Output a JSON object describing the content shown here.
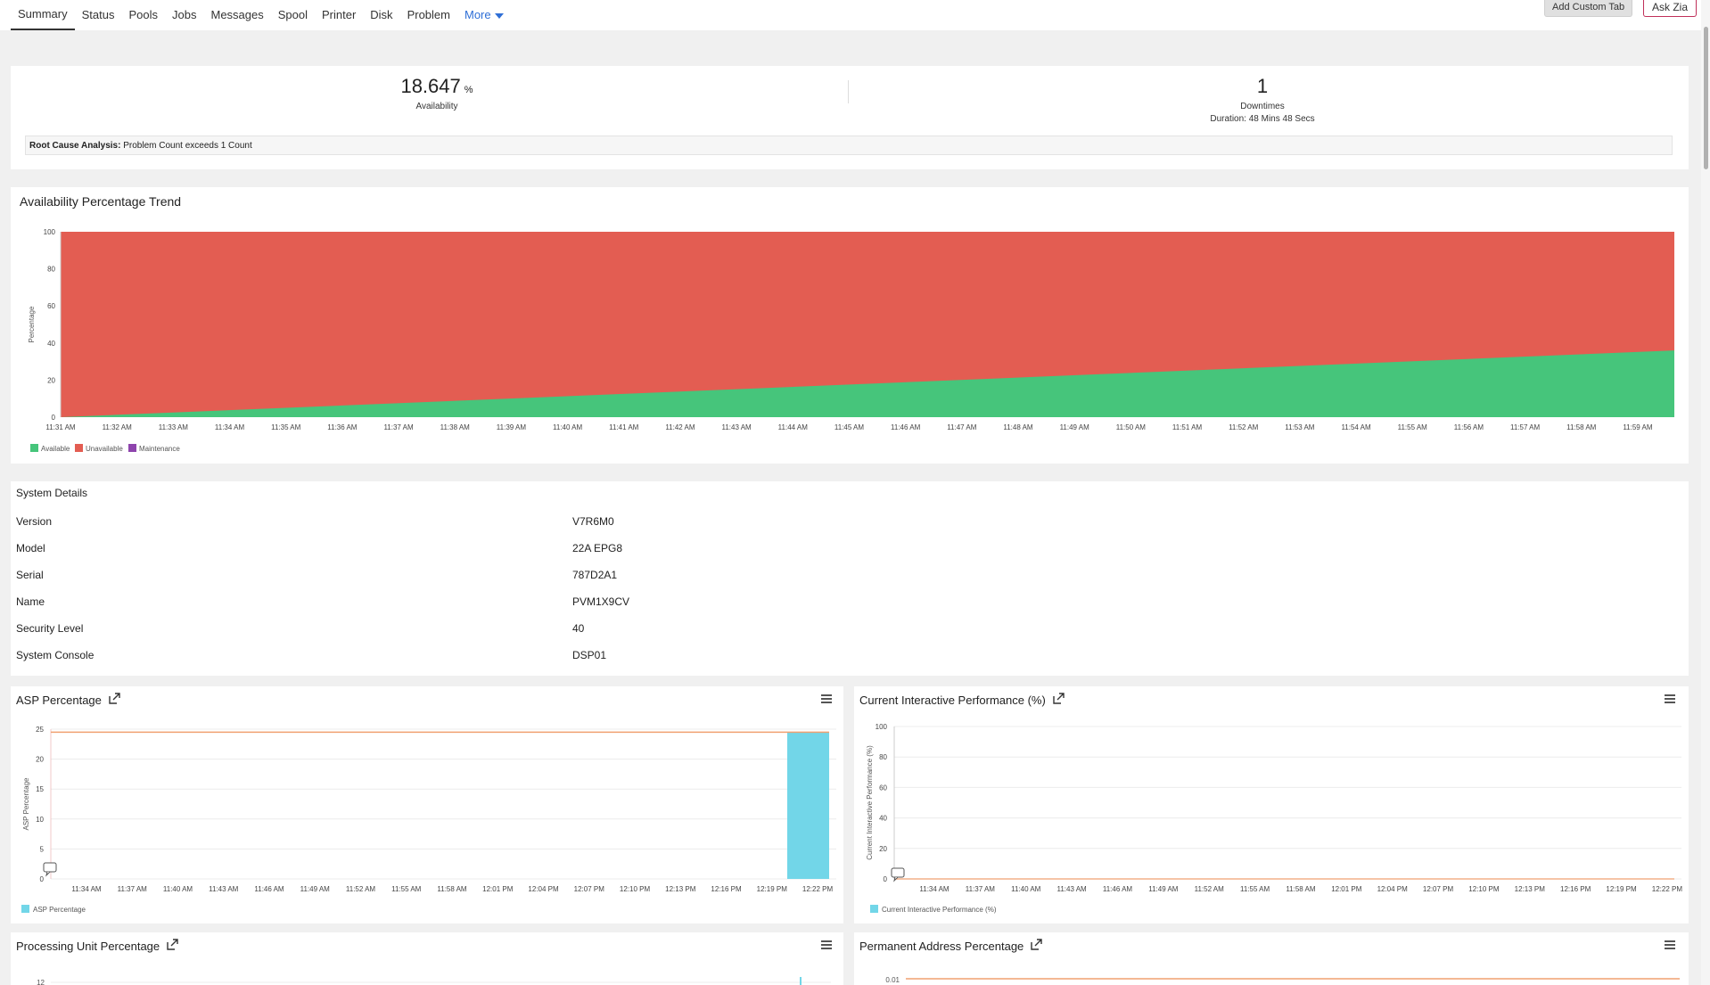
{
  "tabs": [
    {
      "label": "Summary",
      "active": true
    },
    {
      "label": "Status"
    },
    {
      "label": "Pools"
    },
    {
      "label": "Jobs"
    },
    {
      "label": "Messages"
    },
    {
      "label": "Spool"
    },
    {
      "label": "Printer"
    },
    {
      "label": "Disk"
    },
    {
      "label": "Problem"
    }
  ],
  "more_label": "More",
  "buttons": {
    "add_custom_tab": "Add Custom Tab",
    "ask_zia": "Ask Zia"
  },
  "summary": {
    "availability_value": "18.647",
    "availability_unit": "%",
    "availability_label": "Availability",
    "downtimes_value": "1",
    "downtimes_label": "Downtimes",
    "duration_text": "Duration: 48 Mins 48 Secs",
    "rca_label": "Root Cause Analysis:",
    "rca_text": "Problem Count exceeds 1 Count"
  },
  "system_details": {
    "title": "System Details",
    "rows": [
      {
        "key": "Version",
        "value": "V7R6M0"
      },
      {
        "key": "Model",
        "value": "22A EPG8"
      },
      {
        "key": "Serial",
        "value": "787D2A1"
      },
      {
        "key": "Name",
        "value": "PVM1X9CV"
      },
      {
        "key": "Security Level",
        "value": "40"
      },
      {
        "key": "System Console",
        "value": "DSP01"
      }
    ]
  },
  "widgets": {
    "asp_title": "ASP Percentage",
    "cip_title": "Current Interactive Performance (%)",
    "pu_title": "Processing Unit Percentage",
    "pa_title": "Permanent Address Percentage",
    "pa_first_tick": "0.01",
    "pu_first_tick": "12"
  },
  "colors": {
    "available": "#46c57b",
    "unavailable": "#e35d52",
    "maintenance": "#8e44ad",
    "asp_bar": "#72d6e8",
    "threshold": "#f0a070"
  },
  "chart_data": [
    {
      "type": "area",
      "title": "Availability Percentage Trend",
      "ylabel": "Percentage",
      "ylim": [
        0,
        100
      ],
      "yticks": [
        "0",
        "20",
        "40",
        "60",
        "80",
        "100"
      ],
      "x": [
        "11:31 AM",
        "11:32 AM",
        "11:33 AM",
        "11:34 AM",
        "11:35 AM",
        "11:36 AM",
        "11:37 AM",
        "11:38 AM",
        "11:39 AM",
        "11:40 AM",
        "11:41 AM",
        "11:42 AM",
        "11:43 AM",
        "11:44 AM",
        "11:45 AM",
        "11:46 AM",
        "11:47 AM",
        "11:48 AM",
        "11:49 AM",
        "11:50 AM",
        "11:51 AM",
        "11:52 AM",
        "11:53 AM",
        "11:54 AM",
        "11:55 AM",
        "11:56 AM",
        "11:57 AM",
        "11:58 AM",
        "11:59 AM"
      ],
      "series": [
        {
          "name": "Available",
          "start": 0,
          "end": 36
        },
        {
          "name": "Unavailable",
          "start": 100,
          "end": 64
        },
        {
          "name": "Maintenance",
          "start": 0,
          "end": 0
        }
      ],
      "legend": "bottom-left"
    },
    {
      "type": "bar",
      "ylabel": "ASP Percentage",
      "ylim": [
        0,
        25
      ],
      "yticks": [
        "0",
        "5",
        "10",
        "15",
        "20",
        "25"
      ],
      "x": [
        "11:34 AM",
        "11:37 AM",
        "11:40 AM",
        "11:43 AM",
        "11:46 AM",
        "11:49 AM",
        "11:52 AM",
        "11:55 AM",
        "11:58 AM",
        "12:01 PM",
        "12:04 PM",
        "12:07 PM",
        "12:10 PM",
        "12:13 PM",
        "12:16 PM",
        "12:19 PM",
        "12:22 PM"
      ],
      "series": [
        {
          "name": "ASP Percentage",
          "bar_at": "12:22 PM",
          "value": 24.5
        }
      ],
      "threshold": 24.5,
      "legend": "bottom-left"
    },
    {
      "type": "line",
      "ylabel": "Current Interactive Performance (%)",
      "ylim": [
        0,
        100
      ],
      "yticks": [
        "0",
        "20",
        "40",
        "60",
        "80",
        "100"
      ],
      "x": [
        "11:34 AM",
        "11:37 AM",
        "11:40 AM",
        "11:43 AM",
        "11:46 AM",
        "11:49 AM",
        "11:52 AM",
        "11:55 AM",
        "11:58 AM",
        "12:01 PM",
        "12:04 PM",
        "12:07 PM",
        "12:10 PM",
        "12:13 PM",
        "12:16 PM",
        "12:19 PM",
        "12:22 PM"
      ],
      "series": [
        {
          "name": "Current Interactive Performance (%)",
          "value": 0
        }
      ],
      "legend": "bottom-left"
    }
  ]
}
